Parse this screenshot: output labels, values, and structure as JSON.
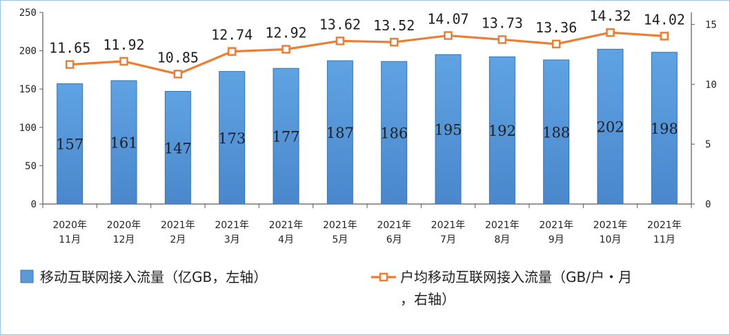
{
  "chart_data": {
    "type": "bar+line",
    "categories": [
      [
        "2020年",
        "11月"
      ],
      [
        "2020年",
        "12月"
      ],
      [
        "2021年",
        "2月"
      ],
      [
        "2021年",
        "3月"
      ],
      [
        "2021年",
        "4月"
      ],
      [
        "2021年",
        "5月"
      ],
      [
        "2021年",
        "6月"
      ],
      [
        "2021年",
        "7月"
      ],
      [
        "2021年",
        "8月"
      ],
      [
        "2021年",
        "9月"
      ],
      [
        "2021年",
        "10月"
      ],
      [
        "2021年",
        "11月"
      ]
    ],
    "series": [
      {
        "name": "移动互联网接入流量（亿GB，左轴）",
        "type": "bar",
        "axis": "left",
        "color": "#5b9bd5",
        "values": [
          157,
          161,
          147,
          173,
          177,
          187,
          186,
          195,
          192,
          188,
          202,
          198
        ],
        "labels": [
          "157",
          "161",
          "147",
          "173",
          "177",
          "187",
          "186",
          "195",
          "192",
          "188",
          "202",
          "198"
        ]
      },
      {
        "name": "户均移动互联网接入流量（GB/户・月，右轴）",
        "legend_lines": [
          "户均移动互联网接入流量（GB/户・月",
          "，右轴）"
        ],
        "type": "line",
        "axis": "right",
        "color": "#ed7d31",
        "values": [
          11.65,
          11.92,
          10.85,
          12.74,
          12.92,
          13.62,
          13.52,
          14.07,
          13.73,
          13.36,
          14.32,
          14.02
        ],
        "labels": [
          "11.65",
          "11.92",
          "10.85",
          "12.74",
          "12.92",
          "13.62",
          "13.52",
          "14.07",
          "13.73",
          "13.36",
          "14.32",
          "14.02"
        ]
      }
    ],
    "y_left": {
      "range": [
        0,
        250
      ],
      "ticks": [
        "0",
        "50",
        "100",
        "150",
        "200",
        "250"
      ]
    },
    "y_right": {
      "range": [
        0,
        16
      ],
      "ticks": [
        "0",
        "5",
        "10",
        "15"
      ]
    },
    "grid": false,
    "legend_position": "bottom"
  }
}
